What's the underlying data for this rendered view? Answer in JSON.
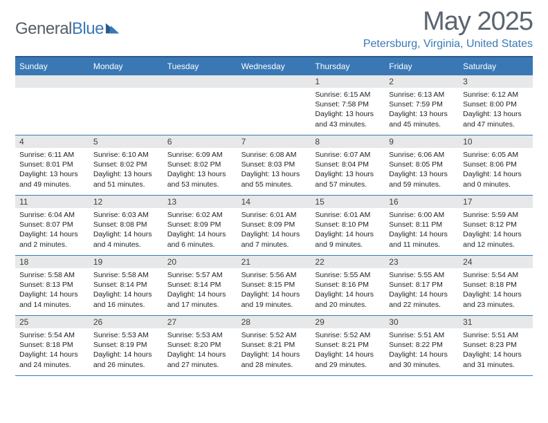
{
  "brand": {
    "name_a": "General",
    "name_b": "Blue"
  },
  "title": "May 2025",
  "location": "Petersburg, Virginia, United States",
  "colors": {
    "header_bg": "#3a78b5",
    "header_border_top": "#2a5a8c",
    "row_border": "#3a78b5",
    "daynum_bg": "#e7e8e9",
    "text": "#222222",
    "title_text": "#5a6570",
    "location_text": "#3a78b5"
  },
  "weekdays": [
    "Sunday",
    "Monday",
    "Tuesday",
    "Wednesday",
    "Thursday",
    "Friday",
    "Saturday"
  ],
  "weeks": [
    [
      {
        "empty": true
      },
      {
        "empty": true
      },
      {
        "empty": true
      },
      {
        "empty": true
      },
      {
        "num": "1",
        "sunrise": "Sunrise: 6:15 AM",
        "sunset": "Sunset: 7:58 PM",
        "day1": "Daylight: 13 hours",
        "day2": "and 43 minutes."
      },
      {
        "num": "2",
        "sunrise": "Sunrise: 6:13 AM",
        "sunset": "Sunset: 7:59 PM",
        "day1": "Daylight: 13 hours",
        "day2": "and 45 minutes."
      },
      {
        "num": "3",
        "sunrise": "Sunrise: 6:12 AM",
        "sunset": "Sunset: 8:00 PM",
        "day1": "Daylight: 13 hours",
        "day2": "and 47 minutes."
      }
    ],
    [
      {
        "num": "4",
        "sunrise": "Sunrise: 6:11 AM",
        "sunset": "Sunset: 8:01 PM",
        "day1": "Daylight: 13 hours",
        "day2": "and 49 minutes."
      },
      {
        "num": "5",
        "sunrise": "Sunrise: 6:10 AM",
        "sunset": "Sunset: 8:02 PM",
        "day1": "Daylight: 13 hours",
        "day2": "and 51 minutes."
      },
      {
        "num": "6",
        "sunrise": "Sunrise: 6:09 AM",
        "sunset": "Sunset: 8:02 PM",
        "day1": "Daylight: 13 hours",
        "day2": "and 53 minutes."
      },
      {
        "num": "7",
        "sunrise": "Sunrise: 6:08 AM",
        "sunset": "Sunset: 8:03 PM",
        "day1": "Daylight: 13 hours",
        "day2": "and 55 minutes."
      },
      {
        "num": "8",
        "sunrise": "Sunrise: 6:07 AM",
        "sunset": "Sunset: 8:04 PM",
        "day1": "Daylight: 13 hours",
        "day2": "and 57 minutes."
      },
      {
        "num": "9",
        "sunrise": "Sunrise: 6:06 AM",
        "sunset": "Sunset: 8:05 PM",
        "day1": "Daylight: 13 hours",
        "day2": "and 59 minutes."
      },
      {
        "num": "10",
        "sunrise": "Sunrise: 6:05 AM",
        "sunset": "Sunset: 8:06 PM",
        "day1": "Daylight: 14 hours",
        "day2": "and 0 minutes."
      }
    ],
    [
      {
        "num": "11",
        "sunrise": "Sunrise: 6:04 AM",
        "sunset": "Sunset: 8:07 PM",
        "day1": "Daylight: 14 hours",
        "day2": "and 2 minutes."
      },
      {
        "num": "12",
        "sunrise": "Sunrise: 6:03 AM",
        "sunset": "Sunset: 8:08 PM",
        "day1": "Daylight: 14 hours",
        "day2": "and 4 minutes."
      },
      {
        "num": "13",
        "sunrise": "Sunrise: 6:02 AM",
        "sunset": "Sunset: 8:09 PM",
        "day1": "Daylight: 14 hours",
        "day2": "and 6 minutes."
      },
      {
        "num": "14",
        "sunrise": "Sunrise: 6:01 AM",
        "sunset": "Sunset: 8:09 PM",
        "day1": "Daylight: 14 hours",
        "day2": "and 7 minutes."
      },
      {
        "num": "15",
        "sunrise": "Sunrise: 6:01 AM",
        "sunset": "Sunset: 8:10 PM",
        "day1": "Daylight: 14 hours",
        "day2": "and 9 minutes."
      },
      {
        "num": "16",
        "sunrise": "Sunrise: 6:00 AM",
        "sunset": "Sunset: 8:11 PM",
        "day1": "Daylight: 14 hours",
        "day2": "and 11 minutes."
      },
      {
        "num": "17",
        "sunrise": "Sunrise: 5:59 AM",
        "sunset": "Sunset: 8:12 PM",
        "day1": "Daylight: 14 hours",
        "day2": "and 12 minutes."
      }
    ],
    [
      {
        "num": "18",
        "sunrise": "Sunrise: 5:58 AM",
        "sunset": "Sunset: 8:13 PM",
        "day1": "Daylight: 14 hours",
        "day2": "and 14 minutes."
      },
      {
        "num": "19",
        "sunrise": "Sunrise: 5:58 AM",
        "sunset": "Sunset: 8:14 PM",
        "day1": "Daylight: 14 hours",
        "day2": "and 16 minutes."
      },
      {
        "num": "20",
        "sunrise": "Sunrise: 5:57 AM",
        "sunset": "Sunset: 8:14 PM",
        "day1": "Daylight: 14 hours",
        "day2": "and 17 minutes."
      },
      {
        "num": "21",
        "sunrise": "Sunrise: 5:56 AM",
        "sunset": "Sunset: 8:15 PM",
        "day1": "Daylight: 14 hours",
        "day2": "and 19 minutes."
      },
      {
        "num": "22",
        "sunrise": "Sunrise: 5:55 AM",
        "sunset": "Sunset: 8:16 PM",
        "day1": "Daylight: 14 hours",
        "day2": "and 20 minutes."
      },
      {
        "num": "23",
        "sunrise": "Sunrise: 5:55 AM",
        "sunset": "Sunset: 8:17 PM",
        "day1": "Daylight: 14 hours",
        "day2": "and 22 minutes."
      },
      {
        "num": "24",
        "sunrise": "Sunrise: 5:54 AM",
        "sunset": "Sunset: 8:18 PM",
        "day1": "Daylight: 14 hours",
        "day2": "and 23 minutes."
      }
    ],
    [
      {
        "num": "25",
        "sunrise": "Sunrise: 5:54 AM",
        "sunset": "Sunset: 8:18 PM",
        "day1": "Daylight: 14 hours",
        "day2": "and 24 minutes."
      },
      {
        "num": "26",
        "sunrise": "Sunrise: 5:53 AM",
        "sunset": "Sunset: 8:19 PM",
        "day1": "Daylight: 14 hours",
        "day2": "and 26 minutes."
      },
      {
        "num": "27",
        "sunrise": "Sunrise: 5:53 AM",
        "sunset": "Sunset: 8:20 PM",
        "day1": "Daylight: 14 hours",
        "day2": "and 27 minutes."
      },
      {
        "num": "28",
        "sunrise": "Sunrise: 5:52 AM",
        "sunset": "Sunset: 8:21 PM",
        "day1": "Daylight: 14 hours",
        "day2": "and 28 minutes."
      },
      {
        "num": "29",
        "sunrise": "Sunrise: 5:52 AM",
        "sunset": "Sunset: 8:21 PM",
        "day1": "Daylight: 14 hours",
        "day2": "and 29 minutes."
      },
      {
        "num": "30",
        "sunrise": "Sunrise: 5:51 AM",
        "sunset": "Sunset: 8:22 PM",
        "day1": "Daylight: 14 hours",
        "day2": "and 30 minutes."
      },
      {
        "num": "31",
        "sunrise": "Sunrise: 5:51 AM",
        "sunset": "Sunset: 8:23 PM",
        "day1": "Daylight: 14 hours",
        "day2": "and 31 minutes."
      }
    ]
  ]
}
